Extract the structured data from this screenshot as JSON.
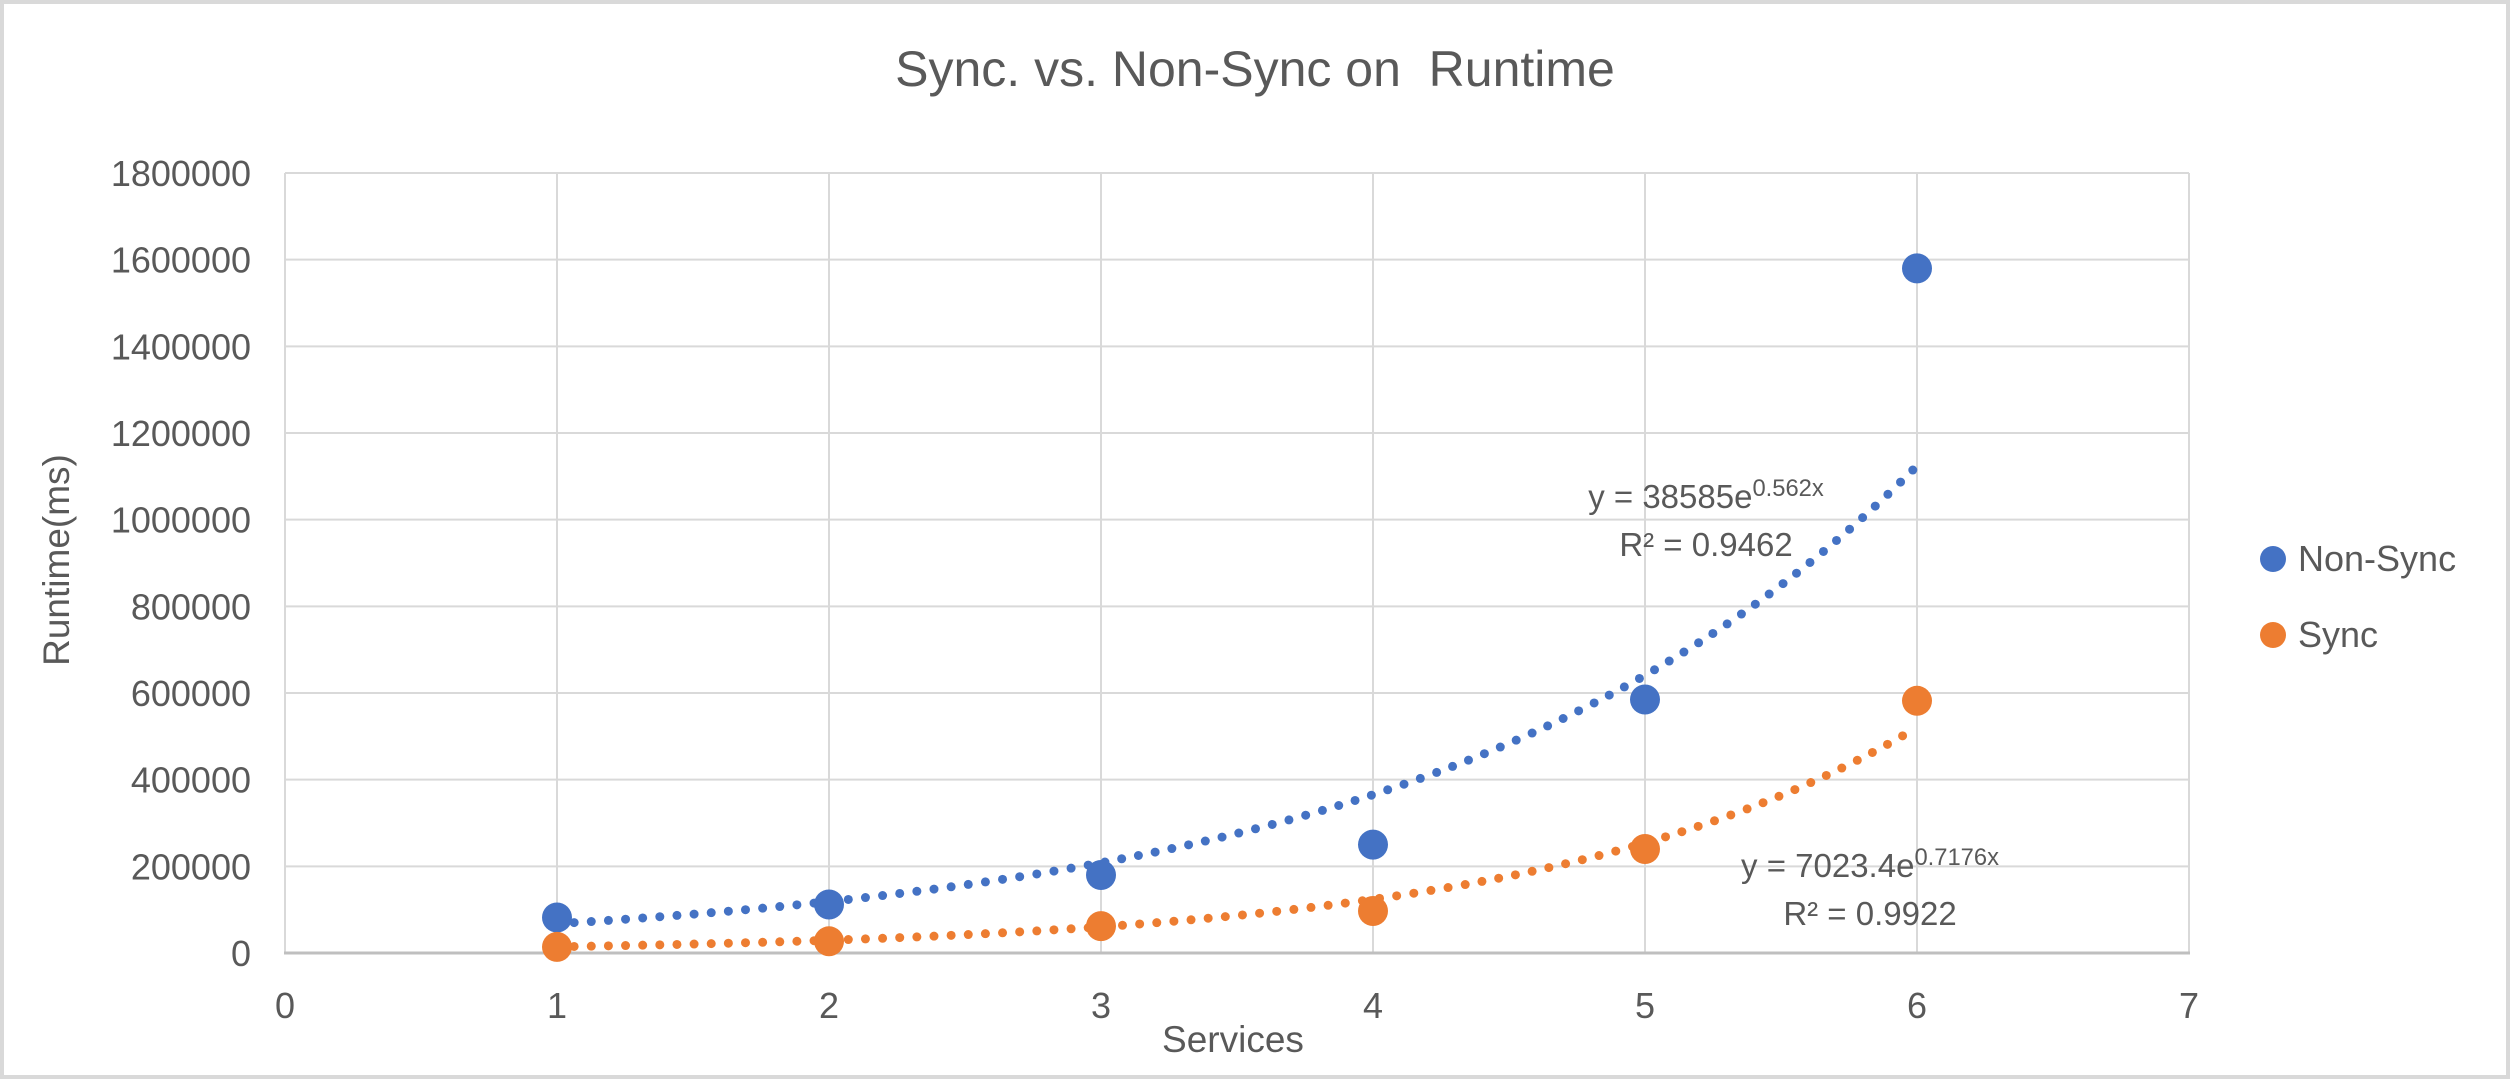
{
  "chart_data": {
    "type": "scatter",
    "title": "Sync. vs. Non-Sync on  Runtime",
    "xlabel": "Services",
    "ylabel": "Runtime(ms)",
    "xlim": [
      0,
      7
    ],
    "ylim": [
      0,
      1800000
    ],
    "x_ticks": [
      0,
      1,
      2,
      3,
      4,
      5,
      6,
      7
    ],
    "y_ticks": [
      0,
      200000,
      400000,
      600000,
      800000,
      1000000,
      1200000,
      1400000,
      1600000,
      1800000
    ],
    "grid": true,
    "legend_position": "right",
    "series": [
      {
        "name": "Non-Sync",
        "color": "#4472C4",
        "x": [
          1,
          2,
          3,
          4,
          5,
          6
        ],
        "y": [
          82000,
          112000,
          180000,
          250000,
          585000,
          1580000
        ],
        "trendline": {
          "type": "exponential",
          "a": 38585,
          "b": 0.562,
          "x_start": 1,
          "x_end": 6,
          "equation_base": "y = 38585e",
          "equation_exponent": "0.562x",
          "r2_label": "R² = 0.9462"
        }
      },
      {
        "name": "Sync",
        "color": "#ED7D31",
        "x": [
          1,
          2,
          3,
          4,
          5,
          6
        ],
        "y": [
          14000,
          27000,
          62000,
          97000,
          240000,
          582000
        ],
        "trendline": {
          "type": "exponential",
          "a": 7023.4,
          "b": 0.7176,
          "x_start": 1,
          "x_end": 6,
          "equation_base": "y = 7023.4e",
          "equation_exponent": "0.7176x",
          "r2_label": "R² = 0.9922"
        }
      }
    ],
    "colors": {
      "grid": "#D9D9D9",
      "axis": "#BFBFBF",
      "text": "#595959"
    }
  }
}
